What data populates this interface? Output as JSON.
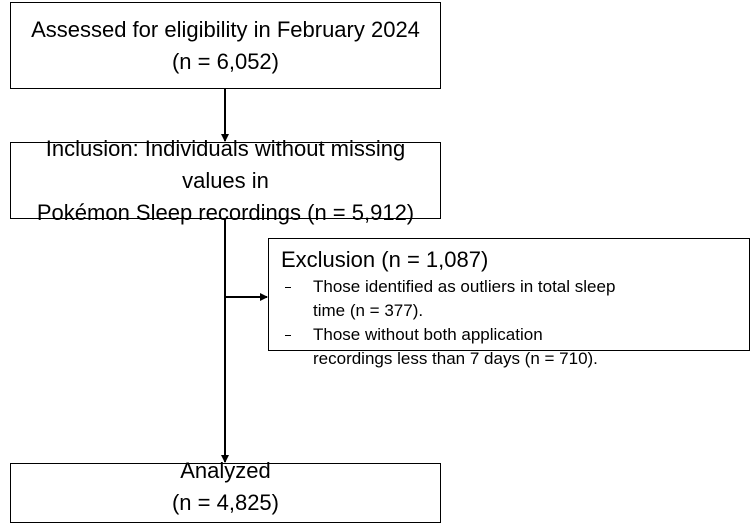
{
  "nodes": [
    {
      "lines": [
        "Assessed for eligibility in February 2024",
        "(n = 6,052)"
      ]
    },
    {
      "lines": [
        "Inclusion: Individuals without missing values in",
        "Pokémon Sleep recordings (n = 5,912)"
      ]
    },
    {
      "title": "Exclusion (n = 1,087)",
      "items": [
        {
          "lines": [
            "Those identified as outliers in total sleep",
            "time (n = 377)."
          ]
        },
        {
          "lines": [
            "Those without both application",
            "recordings less than 7 days (n = 710)."
          ]
        }
      ]
    },
    {
      "lines": [
        "Analyzed",
        "(n = 4,825)"
      ]
    }
  ]
}
